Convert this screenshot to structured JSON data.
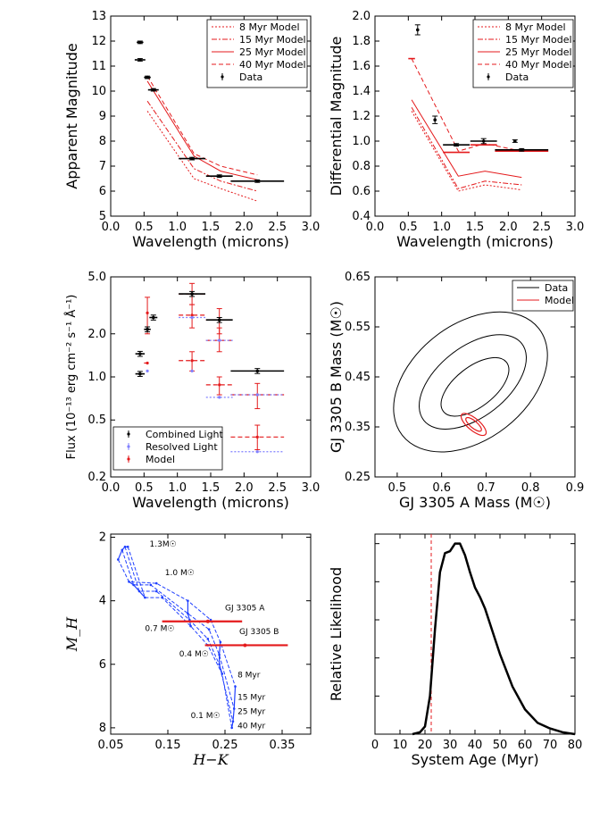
{
  "colors": {
    "model": "#e41a1c",
    "data": "#000000",
    "resolved": "#8080ff",
    "track": "#1f3fff"
  },
  "chart_data": [
    {
      "id": "top-left",
      "type": "line",
      "xlabel": "Wavelength (microns)",
      "ylabel": "Apparent Magnitude",
      "xlim": [
        0.0,
        3.0
      ],
      "ylim": [
        5,
        13
      ],
      "xticks": [
        "0.0",
        "0.5",
        "1.0",
        "1.5",
        "2.0",
        "2.5",
        "3.0"
      ],
      "yticks": [
        "5",
        "6",
        "7",
        "8",
        "9",
        "10",
        "11",
        "12",
        "13"
      ],
      "legend": [
        "8 Myr Model",
        "15 Myr Model",
        "25 Myr Model",
        "40 Myr Model",
        "Data"
      ],
      "series": [
        {
          "name": "8 Myr Model",
          "x": [
            0.55,
            1.25,
            1.65,
            2.2
          ],
          "y": [
            9.2,
            6.5,
            6.1,
            5.6
          ]
        },
        {
          "name": "15 Myr Model",
          "x": [
            0.55,
            1.25,
            1.65,
            2.2
          ],
          "y": [
            9.6,
            6.9,
            6.4,
            6.0
          ]
        },
        {
          "name": "25 Myr Model",
          "x": [
            0.55,
            1.25,
            1.65,
            2.2
          ],
          "y": [
            10.4,
            7.4,
            6.8,
            6.45
          ]
        },
        {
          "name": "40 Myr Model",
          "x": [
            0.55,
            1.25,
            1.65,
            2.2
          ],
          "y": [
            10.6,
            7.5,
            7.0,
            6.65
          ]
        }
      ],
      "data": [
        {
          "x": 0.44,
          "y": 11.95,
          "xerr": 0.05,
          "yerr": 0.05
        },
        {
          "x": 0.44,
          "y": 11.25,
          "xerr": 0.08,
          "yerr": 0.05
        },
        {
          "x": 0.55,
          "y": 10.55,
          "xerr": 0.05,
          "yerr": 0.05
        },
        {
          "x": 0.64,
          "y": 10.05,
          "xerr": 0.08,
          "yerr": 0.05
        },
        {
          "x": 1.22,
          "y": 7.3,
          "xerr": 0.2,
          "yerr": 0.05
        },
        {
          "x": 1.63,
          "y": 6.6,
          "xerr": 0.2,
          "yerr": 0.05
        },
        {
          "x": 2.2,
          "y": 6.4,
          "xerr": 0.4,
          "yerr": 0.05
        }
      ]
    },
    {
      "id": "top-right",
      "type": "line",
      "xlabel": "Wavelength (microns)",
      "ylabel": "Differential Magnitude",
      "xlim": [
        0.0,
        3.0
      ],
      "ylim": [
        0.4,
        2.0
      ],
      "xticks": [
        "0.0",
        "0.5",
        "1.0",
        "1.5",
        "2.0",
        "2.5",
        "3.0"
      ],
      "yticks": [
        "0.4",
        "0.6",
        "0.8",
        "1.0",
        "1.2",
        "1.4",
        "1.6",
        "1.8",
        "2.0"
      ],
      "legend": [
        "8 Myr Model",
        "15 Myr Model",
        "25 Myr Model",
        "40 Myr Model",
        "Data"
      ],
      "series": [
        {
          "name": "8 Myr Model",
          "x": [
            0.55,
            1.25,
            1.65,
            2.2
          ],
          "y": [
            1.24,
            0.6,
            0.65,
            0.61
          ]
        },
        {
          "name": "15 Myr Model",
          "x": [
            0.55,
            1.25,
            1.65,
            2.2
          ],
          "y": [
            1.27,
            0.62,
            0.68,
            0.65
          ]
        },
        {
          "name": "25 Myr Model",
          "x": [
            0.55,
            1.25,
            1.65,
            2.2
          ],
          "y": [
            1.33,
            0.72,
            0.76,
            0.71
          ]
        },
        {
          "name": "40 Myr Model",
          "x": [
            0.55,
            1.25,
            1.65,
            2.2
          ],
          "y": [
            1.66,
            0.92,
            0.98,
            0.92
          ]
        }
      ],
      "model_bars": [
        {
          "x": 0.55,
          "y": 1.66,
          "xerr": 0.05
        },
        {
          "x": 1.22,
          "y": 0.91,
          "xerr": 0.2
        },
        {
          "x": 1.63,
          "y": 0.97,
          "xerr": 0.2
        },
        {
          "x": 2.2,
          "y": 0.92,
          "xerr": 0.4
        }
      ],
      "data": [
        {
          "x": 0.64,
          "y": 1.89,
          "xerr": 0.0,
          "yerr": 0.04
        },
        {
          "x": 0.9,
          "y": 1.17,
          "xerr": 0.0,
          "yerr": 0.03
        },
        {
          "x": 1.22,
          "y": 0.97,
          "xerr": 0.2,
          "yerr": 0.01
        },
        {
          "x": 1.63,
          "y": 1.0,
          "xerr": 0.2,
          "yerr": 0.02
        },
        {
          "x": 2.2,
          "y": 0.93,
          "xerr": 0.4,
          "yerr": 0.01
        },
        {
          "x": 2.1,
          "y": 1.0,
          "xerr": 0.0,
          "yerr": 0.01
        }
      ]
    },
    {
      "id": "mid-left",
      "type": "scatter",
      "xlabel": "Wavelength (microns)",
      "ylabel": "Flux (10⁻¹³ erg cm⁻² s⁻¹ Å⁻¹)",
      "xlim": [
        0.0,
        3.0
      ],
      "ylim": [
        0.2,
        5.0
      ],
      "yscale": "log",
      "xticks": [
        "0.0",
        "0.5",
        "1.0",
        "1.5",
        "2.0",
        "2.5",
        "3.0"
      ],
      "yticks": [
        "0.2",
        "0.5",
        "1.0",
        "2.0",
        "5.0"
      ],
      "legend": [
        "Combined Light",
        "Resolved Light",
        "Model"
      ],
      "combined": [
        {
          "x": 0.44,
          "y": 1.05,
          "xerr": 0.07
        },
        {
          "x": 0.44,
          "y": 1.45,
          "xerr": 0.07
        },
        {
          "x": 0.55,
          "y": 2.15,
          "xerr": 0.05
        },
        {
          "x": 0.64,
          "y": 2.6,
          "xerr": 0.06
        },
        {
          "x": 1.22,
          "y": 3.8,
          "xerr": 0.2
        },
        {
          "x": 1.63,
          "y": 2.5,
          "xerr": 0.2
        },
        {
          "x": 2.2,
          "y": 1.1,
          "xerr": 0.4
        }
      ],
      "resolved": [
        {
          "x": 0.55,
          "y": 1.1
        },
        {
          "x": 1.22,
          "y": 2.6,
          "xerr": 0.2
        },
        {
          "x": 1.22,
          "y": 1.1
        },
        {
          "x": 1.63,
          "y": 1.8,
          "xerr": 0.2
        },
        {
          "x": 1.63,
          "y": 0.72,
          "xerr": 0.2
        },
        {
          "x": 2.2,
          "y": 0.75,
          "xerr": 0.4
        },
        {
          "x": 2.2,
          "y": 0.3,
          "xerr": 0.4
        }
      ],
      "model": [
        {
          "x": 0.55,
          "y": 2.8,
          "ylo": 2.0,
          "yhi": 3.6
        },
        {
          "x": 0.55,
          "y": 1.25,
          "xerr": 0.05
        },
        {
          "x": 1.22,
          "y": 3.8,
          "xerr": 0.2,
          "ylo": 3.2,
          "yhi": 4.5
        },
        {
          "x": 1.22,
          "y": 2.7,
          "xerr": 0.2,
          "ylo": 2.2,
          "yhi": 3.2
        },
        {
          "x": 1.22,
          "y": 1.3,
          "xerr": 0.2,
          "ylo": 1.1,
          "yhi": 1.5
        },
        {
          "x": 1.63,
          "y": 1.8,
          "xerr": 0.2,
          "ylo": 1.5,
          "yhi": 2.2
        },
        {
          "x": 1.63,
          "y": 2.5,
          "xerr": 0.2,
          "ylo": 2.0,
          "yhi": 3.0
        },
        {
          "x": 1.63,
          "y": 0.88,
          "xerr": 0.2,
          "ylo": 0.75,
          "yhi": 1.0
        },
        {
          "x": 2.2,
          "y": 0.75,
          "xerr": 0.4,
          "ylo": 0.6,
          "yhi": 0.9
        },
        {
          "x": 2.2,
          "y": 0.38,
          "xerr": 0.4,
          "ylo": 0.31,
          "yhi": 0.46
        }
      ]
    },
    {
      "id": "mid-right",
      "type": "contour",
      "xlabel": "GJ 3305 A Mass (M☉)",
      "ylabel": "GJ 3305 B Mass (M☉)",
      "xlim": [
        0.45,
        0.9
      ],
      "ylim": [
        0.25,
        0.65
      ],
      "xticks": [
        "0.5",
        "0.6",
        "0.7",
        "0.8",
        "0.9"
      ],
      "yticks": [
        "0.25",
        "0.35",
        "0.45",
        "0.55",
        "0.65"
      ],
      "legend": [
        "Data",
        "Model"
      ],
      "data_contours": [
        {
          "cx": 0.665,
          "cy": 0.44,
          "rx": 0.195,
          "ry": 0.115,
          "angle": -38
        },
        {
          "cx": 0.67,
          "cy": 0.44,
          "rx": 0.14,
          "ry": 0.07,
          "angle": -38
        },
        {
          "cx": 0.675,
          "cy": 0.43,
          "rx": 0.09,
          "ry": 0.04,
          "angle": -38
        }
      ],
      "model_contours": [
        {
          "cx": 0.672,
          "cy": 0.355,
          "rx": 0.035,
          "ry": 0.012,
          "angle": 40
        },
        {
          "cx": 0.672,
          "cy": 0.355,
          "rx": 0.022,
          "ry": 0.007,
          "angle": 40
        }
      ]
    },
    {
      "id": "bottom-left",
      "type": "line",
      "xlabel": "H−K",
      "ylabel": "M_H",
      "xlim": [
        0.05,
        0.4
      ],
      "ylim": [
        8.2,
        1.9
      ],
      "xticks": [
        "0.05",
        "0.15",
        "0.25",
        "0.35"
      ],
      "yticks": [
        "2",
        "4",
        "6",
        "8"
      ],
      "mass_labels": [
        "1.3M☉",
        "1.0 M☉",
        "0.7 M☉",
        "0.4 M☉",
        "0.1 M☉"
      ],
      "age_labels": [
        "8 Myr",
        "15 Myr",
        "25 Myr",
        "40 Myr"
      ],
      "star_labels": [
        "GJ 3305 A",
        "GJ 3305 B"
      ],
      "isochrones": [
        {
          "name": "8 Myr",
          "x": [
            0.063,
            0.082,
            0.13,
            0.185,
            0.225,
            0.242,
            0.268
          ],
          "y": [
            2.7,
            3.4,
            3.45,
            4.0,
            4.6,
            5.3,
            6.7
          ]
        },
        {
          "name": "15 Myr",
          "x": [
            0.07,
            0.09,
            0.12,
            0.185,
            0.222,
            0.24,
            0.266
          ],
          "y": [
            2.4,
            3.5,
            3.5,
            4.4,
            4.9,
            5.7,
            7.4
          ]
        },
        {
          "name": "25 Myr",
          "x": [
            0.075,
            0.1,
            0.13,
            0.188,
            0.22,
            0.24,
            0.264
          ],
          "y": [
            2.3,
            3.7,
            3.7,
            4.6,
            5.2,
            6.0,
            7.8
          ]
        },
        {
          "name": "40 Myr",
          "x": [
            0.08,
            0.11,
            0.14,
            0.19,
            0.22,
            0.245,
            0.262
          ],
          "y": [
            2.3,
            3.9,
            3.9,
            4.8,
            5.4,
            6.3,
            8.0
          ]
        }
      ],
      "mass_tracks": [
        {
          "x": [
            0.063,
            0.07,
            0.075,
            0.08
          ],
          "y": [
            2.7,
            2.4,
            2.3,
            2.3
          ]
        },
        {
          "x": [
            0.082,
            0.09,
            0.1,
            0.11
          ],
          "y": [
            3.4,
            3.5,
            3.7,
            3.9
          ]
        },
        {
          "x": [
            0.185,
            0.185,
            0.188,
            0.19
          ],
          "y": [
            4.0,
            4.4,
            4.6,
            4.8
          ]
        },
        {
          "x": [
            0.242,
            0.24,
            0.24,
            0.245
          ],
          "y": [
            5.3,
            5.7,
            6.0,
            6.3
          ]
        },
        {
          "x": [
            0.268,
            0.266,
            0.264,
            0.262
          ],
          "y": [
            6.7,
            7.4,
            7.8,
            8.0
          ]
        }
      ],
      "stars": [
        {
          "name": "GJ 3305 A",
          "x": 0.22,
          "y": 4.65,
          "xlo": 0.14,
          "xhi": 0.28
        },
        {
          "name": "GJ 3305 B",
          "x": 0.285,
          "y": 5.4,
          "xlo": 0.215,
          "xhi": 0.36
        }
      ]
    },
    {
      "id": "bottom-right",
      "type": "line",
      "xlabel": "System Age (Myr)",
      "ylabel": "Relative Likelihood",
      "xlim": [
        0,
        80
      ],
      "ylim": [
        0,
        1.05
      ],
      "xticks": [
        "0",
        "10",
        "20",
        "30",
        "40",
        "50",
        "60",
        "70",
        "80"
      ],
      "vline": 22.5,
      "x": [
        15,
        18,
        20,
        22,
        24,
        26,
        28,
        30,
        32,
        34,
        36,
        38,
        40,
        42,
        44,
        46,
        48,
        50,
        55,
        60,
        65,
        70,
        75,
        80
      ],
      "y": [
        0.0,
        0.01,
        0.04,
        0.2,
        0.55,
        0.85,
        0.95,
        0.96,
        1.0,
        1.0,
        0.94,
        0.85,
        0.77,
        0.72,
        0.66,
        0.58,
        0.5,
        0.42,
        0.25,
        0.13,
        0.06,
        0.03,
        0.01,
        0.0
      ]
    }
  ]
}
